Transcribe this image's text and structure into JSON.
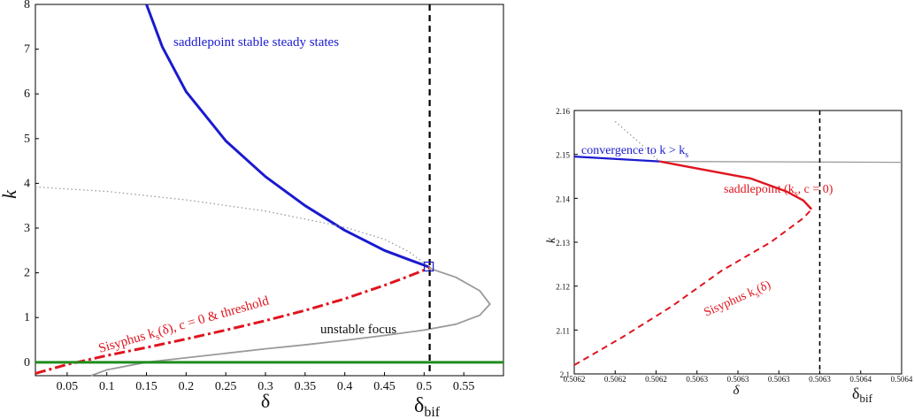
{
  "chart_data": [
    {
      "type": "line",
      "xlabel": "δ",
      "ylabel": "k",
      "xlim": [
        0.01,
        0.6
      ],
      "ylim": [
        -0.3,
        8
      ],
      "xticks": [
        "0.05",
        "0.1",
        "0.15",
        "0.2",
        "0.25",
        "0.3",
        "0.35",
        "0.4",
        "0.45",
        "0.5",
        "0.55"
      ],
      "yticks": [
        "0",
        "1",
        "2",
        "3",
        "4",
        "5",
        "6",
        "7",
        "8"
      ],
      "bifurcation_label": "δ",
      "bifurcation_sub": "bif",
      "bifurcation_x": 0.507,
      "series": [
        {
          "name": "saddlepoint stable steady states",
          "color": "#1a1ad0",
          "style": "solid",
          "x": [
            0.15,
            0.17,
            0.2,
            0.25,
            0.3,
            0.35,
            0.4,
            0.45,
            0.48,
            0.5,
            0.507
          ],
          "y": [
            8.0,
            7.05,
            6.05,
            4.95,
            4.15,
            3.5,
            2.95,
            2.5,
            2.3,
            2.17,
            2.12
          ]
        },
        {
          "name": "Sisyphus k_s(δ), c = 0 & threshold",
          "color": "#e0141e",
          "style": "dashdot",
          "x": [
            0.01,
            0.05,
            0.1,
            0.15,
            0.2,
            0.25,
            0.3,
            0.35,
            0.4,
            0.45,
            0.48,
            0.5,
            0.507
          ],
          "y": [
            -0.25,
            -0.05,
            0.15,
            0.33,
            0.52,
            0.72,
            0.93,
            1.16,
            1.42,
            1.72,
            1.92,
            2.06,
            2.12
          ]
        },
        {
          "name": "unstable focus",
          "color": "#9a9a9a",
          "style": "solid",
          "x": [
            0.08,
            0.1,
            0.15,
            0.2,
            0.25,
            0.3,
            0.35,
            0.4,
            0.45,
            0.5,
            0.54,
            0.57,
            0.583,
            0.57,
            0.54,
            0.51,
            0.507
          ],
          "y": [
            -0.3,
            -0.17,
            0.0,
            0.1,
            0.2,
            0.3,
            0.39,
            0.49,
            0.6,
            0.72,
            0.85,
            1.05,
            1.3,
            1.6,
            1.9,
            2.08,
            2.12
          ]
        },
        {
          "name": "",
          "color": "#9a9a9a",
          "style": "dotted",
          "x": [
            0.01,
            0.1,
            0.2,
            0.3,
            0.4,
            0.45,
            0.48,
            0.5,
            0.507
          ],
          "y": [
            3.92,
            3.82,
            3.63,
            3.38,
            3.02,
            2.75,
            2.48,
            2.22,
            2.12
          ]
        },
        {
          "name": "",
          "color": "#1e8c1e",
          "style": "solid",
          "x": [
            0.01,
            0.6
          ],
          "y": [
            0.0,
            0.0
          ]
        }
      ],
      "annotations": [
        {
          "text": "saddlepoint stable steady states",
          "color": "#1a1ad0"
        },
        {
          "text": "unstable focus",
          "color": "#111111"
        },
        {
          "text": "Sisyphus k",
          "sub": "s",
          "rest": "(δ), c = 0 & threshold",
          "color": "#e0141e"
        }
      ]
    },
    {
      "type": "line",
      "xlabel": "δ",
      "ylabel": "k",
      "xlim": [
        0.5062,
        0.5064
      ],
      "ylim": [
        2.1,
        2.16
      ],
      "xticks": [
        "0.5062",
        "0.5062",
        "0.5062",
        "0.5063",
        "0.5063",
        "0.5063",
        "0.5063",
        "0.5064",
        "0.5064"
      ],
      "yticks": [
        "2.1",
        "2.11",
        "2.12",
        "2.13",
        "2.14",
        "2.15",
        "2.16"
      ],
      "bifurcation_label": "δ",
      "bifurcation_sub": "bif",
      "bifurcation_x": 0.50635,
      "series": [
        {
          "name": "convergence to k > k_s",
          "color": "#1a1ad0",
          "style": "solid",
          "x": [
            0.5062,
            0.506252
          ],
          "y": [
            2.1495,
            2.1484
          ]
        },
        {
          "name": "",
          "color": "#9a9a9a",
          "style": "solid",
          "x": [
            0.506252,
            0.5064
          ],
          "y": [
            2.1484,
            2.1482
          ]
        },
        {
          "name": "saddlepoint (k_s, c = 0)",
          "color": "#e0141e",
          "style": "solid",
          "x": [
            0.506252,
            0.506308,
            0.50633,
            0.50634,
            0.506345
          ],
          "y": [
            2.1484,
            2.1445,
            2.1415,
            2.1395,
            2.1375
          ]
        },
        {
          "name": "Sisyphus k_s(δ)",
          "color": "#e0141e",
          "style": "dashed",
          "x": [
            0.5062,
            0.50623,
            0.50626,
            0.50629,
            0.50632,
            0.50634,
            0.506345
          ],
          "y": [
            2.102,
            2.1085,
            2.1155,
            2.1235,
            2.13,
            2.1355,
            2.1375
          ]
        },
        {
          "name": "",
          "color": "#9a9a9a",
          "style": "dotted",
          "x": [
            0.506225,
            0.50624,
            0.506252
          ],
          "y": [
            2.1575,
            2.1526,
            2.1484
          ]
        }
      ],
      "annotations": [
        {
          "text": "convergence to k > k",
          "sub": "s",
          "color": "#1a1ad0"
        },
        {
          "text": "saddlepoint (k",
          "sub": "s",
          "rest": ", c = 0)",
          "color": "#e0141e"
        },
        {
          "text": "Sisyphus k",
          "sub": "s",
          "rest": "(δ)",
          "color": "#e0141e"
        }
      ]
    }
  ]
}
